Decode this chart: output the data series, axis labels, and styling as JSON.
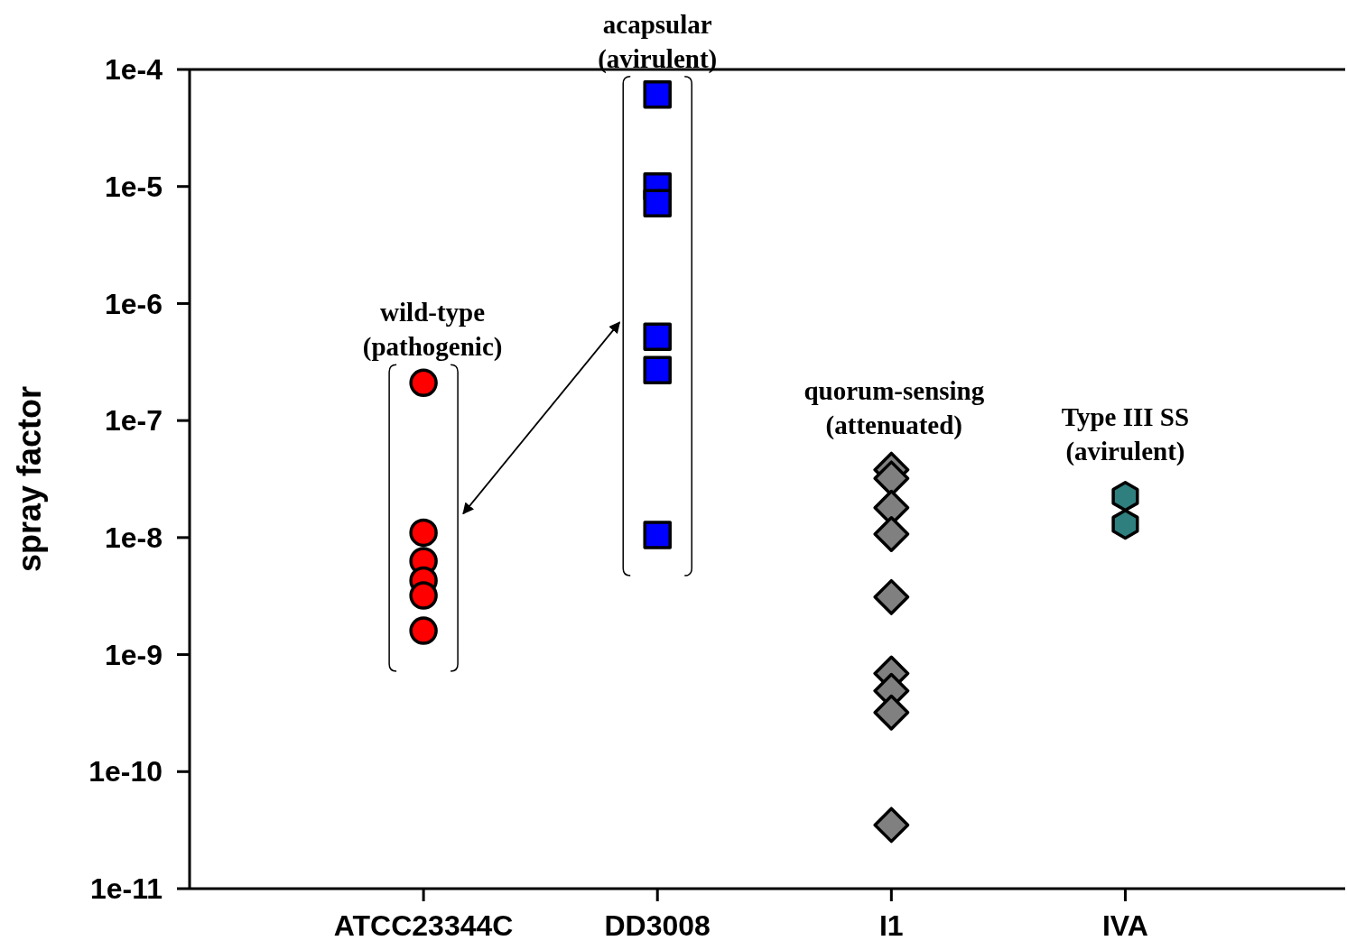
{
  "chart_data": {
    "type": "scatter",
    "ylabel": "spray factor",
    "log": "y",
    "categories": [
      "ATCC23344C",
      "DD3008",
      "I1",
      "IVA"
    ],
    "ylim": [
      1e-11,
      0.0001
    ],
    "yticks": [
      {
        "value": 1e-11,
        "label": "1e-11"
      },
      {
        "value": 1e-10,
        "label": "1e-10"
      },
      {
        "value": 1e-09,
        "label": "1e-9"
      },
      {
        "value": 1e-08,
        "label": "1e-8"
      },
      {
        "value": 1e-07,
        "label": "1e-7"
      },
      {
        "value": 1e-06,
        "label": "1e-6"
      },
      {
        "value": 1e-05,
        "label": "1e-5"
      },
      {
        "value": 0.0001,
        "label": "1e-4"
      }
    ],
    "grid": false,
    "series": [
      {
        "color": "#ff0000",
        "marker": "circle",
        "x": [
          "ATCC23344C",
          "ATCC23344C",
          "ATCC23344C",
          "ATCC23344C",
          "ATCC23344C",
          "ATCC23344C"
        ],
        "values": [
          2.1e-07,
          1.1e-08,
          6.3e-09,
          4.3e-09,
          3.2e-09,
          1.6e-09
        ]
      },
      {
        "color": "#0000ff",
        "marker": "square",
        "x": [
          "DD3008",
          "DD3008",
          "DD3008",
          "DD3008",
          "DD3008",
          "DD3008"
        ],
        "values": [
          6.1e-05,
          1e-05,
          7.2e-06,
          5.2e-07,
          2.7e-07,
          1.05e-08
        ]
      },
      {
        "color": "#808080",
        "marker": "diamond",
        "x": [
          "I1",
          "I1",
          "I1",
          "I1",
          "I1",
          "I1",
          "I1",
          "I1",
          "I1"
        ],
        "values": [
          3.8e-08,
          3.2e-08,
          1.8e-08,
          1.07e-08,
          3.1e-09,
          6.9e-10,
          4.9e-10,
          3.2e-10,
          3.5e-11
        ]
      },
      {
        "color": "#2f7f7f",
        "x": [
          "IVA",
          "IVA"
        ],
        "values": [
          2.25e-08,
          1.3e-08
        ]
      }
    ],
    "annotations": [
      "wild-type\n(pathogenic)",
      "acapsular\n(avirulent)",
      "quorum-sensing\n(attenuated)",
      "Type III SS\n(avirulent)"
    ]
  }
}
